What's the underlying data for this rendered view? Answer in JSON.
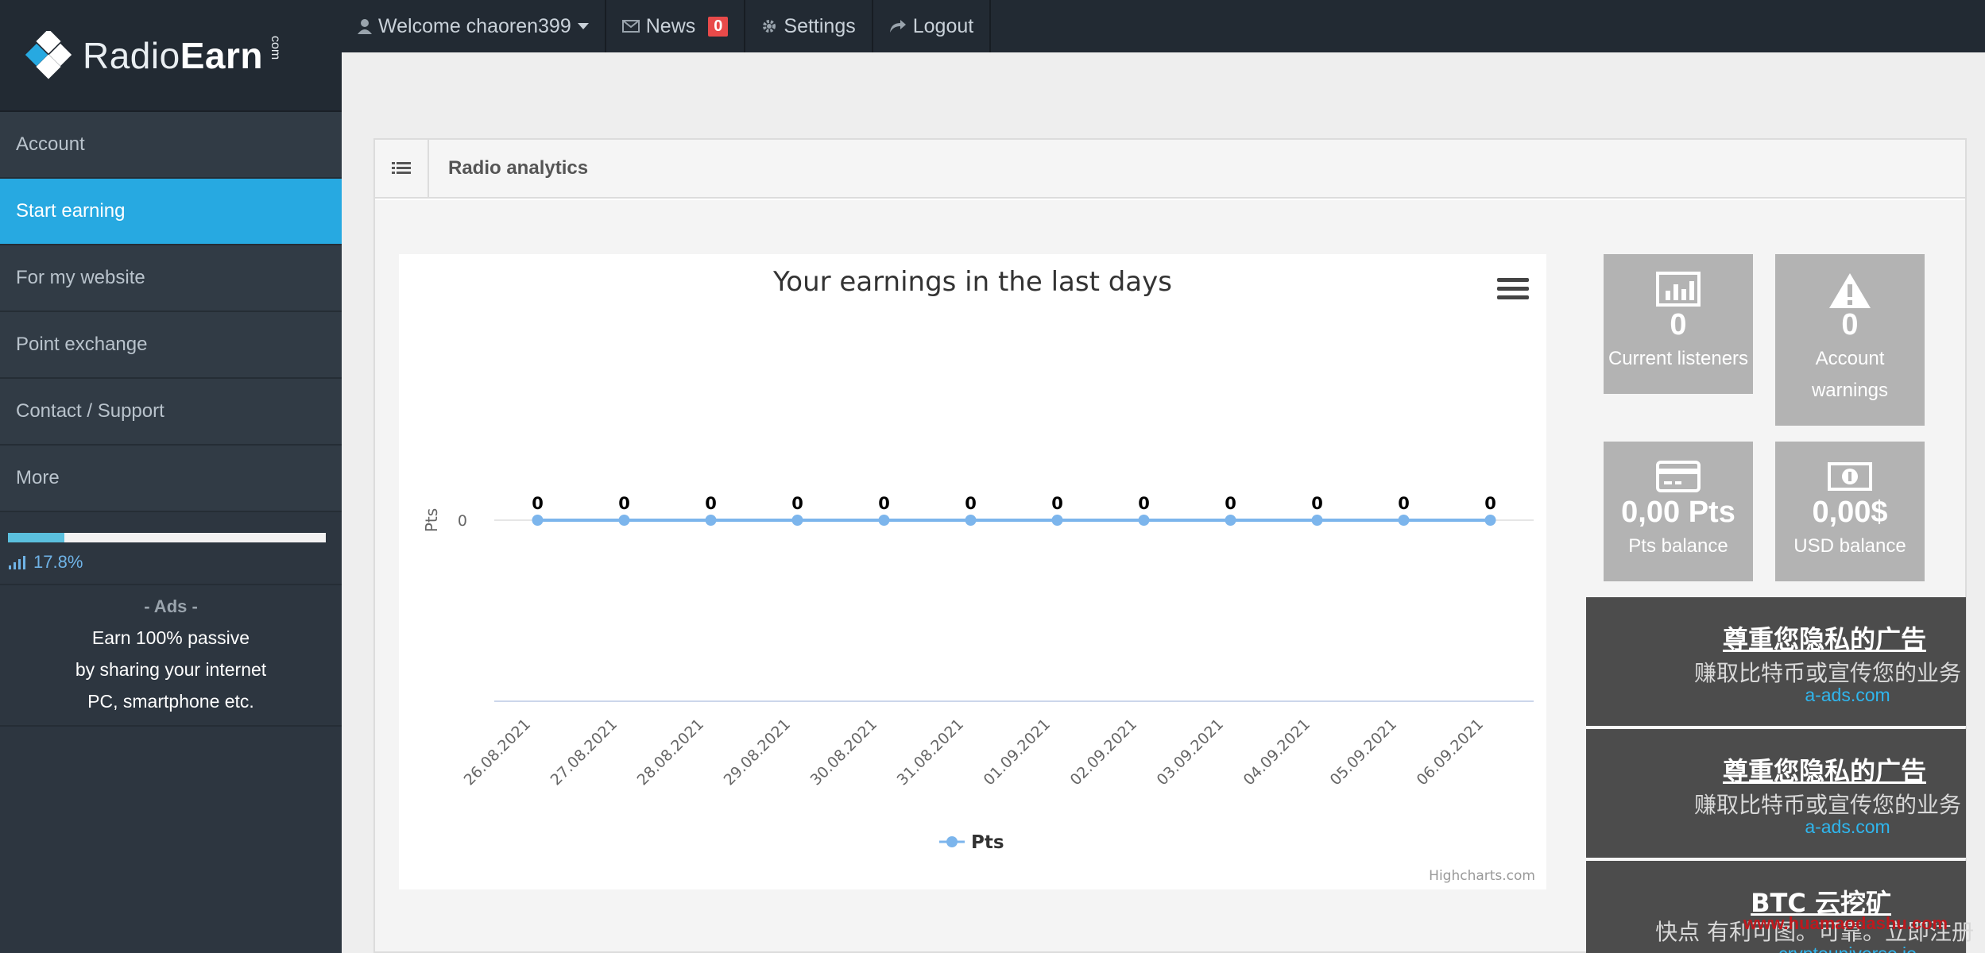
{
  "brand": {
    "name_light": "Radio",
    "name_bold": "Earn",
    "suffix": "com"
  },
  "topbar": {
    "welcome": "Welcome chaoren399",
    "news_label": "News",
    "news_count": "0",
    "settings": "Settings",
    "logout": "Logout"
  },
  "sidebar": {
    "items": [
      {
        "label": "Account"
      },
      {
        "label": "Start earning"
      },
      {
        "label": "For my website"
      },
      {
        "label": "Point exchange"
      },
      {
        "label": "Contact / Support"
      },
      {
        "label": "More"
      }
    ],
    "active_index": 1,
    "progress": {
      "percent": 17.8,
      "label": "17.8%"
    },
    "ads": {
      "title": "- Ads -",
      "line1": "Earn 100% passive",
      "line2": "by sharing your internet",
      "line3": "PC, smartphone etc."
    }
  },
  "panel": {
    "title": "Radio analytics"
  },
  "chart_data": {
    "type": "line",
    "title": "Your earnings in the last days",
    "ylabel": "Pts",
    "xlabel": "",
    "categories": [
      "26.08.2021",
      "27.08.2021",
      "28.08.2021",
      "29.08.2021",
      "30.08.2021",
      "31.08.2021",
      "01.09.2021",
      "02.09.2021",
      "03.09.2021",
      "04.09.2021",
      "05.09.2021",
      "06.09.2021"
    ],
    "series": [
      {
        "name": "Pts",
        "values": [
          0,
          0,
          0,
          0,
          0,
          0,
          0,
          0,
          0,
          0,
          0,
          0
        ]
      }
    ],
    "yticks": [
      "0"
    ],
    "credit": "Highcharts.com",
    "legend": "bottom-center",
    "color": "#7cb5ec"
  },
  "stats": {
    "listeners": {
      "value": "0",
      "label": "Current listeners"
    },
    "warnings": {
      "value": "0",
      "label1": "Account",
      "label2": "warnings"
    },
    "pts": {
      "value": "0,00 Pts",
      "label": "Pts balance"
    },
    "usd": {
      "value": "0,00$",
      "label": "USD balance"
    }
  },
  "ads_side": [
    {
      "title": "尊重您隐私的广告",
      "sub": "赚取比特币或宣传您的业务",
      "link": "a-ads.com"
    },
    {
      "title": "尊重您隐私的广告",
      "sub": "赚取比特币或宣传您的业务",
      "link": "a-ads.com"
    },
    {
      "title": "BTC 云挖矿",
      "sub": "快点 有利可图。可靠。立即注册",
      "link": "cryptouniverse.io"
    }
  ],
  "watermark": "www.huamaodashu.com"
}
